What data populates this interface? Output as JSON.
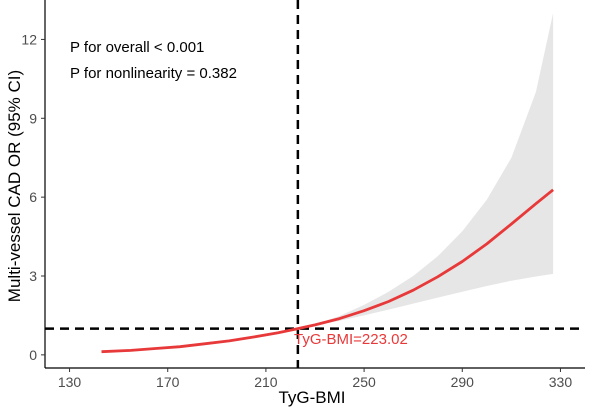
{
  "chart_data": {
    "type": "line",
    "title": "",
    "xlabel": "TyG-BMI",
    "ylabel": "Multi-vessel CAD OR (95% CI)",
    "xlim": [
      120,
      340
    ],
    "ylim": [
      -0.5,
      13.5
    ],
    "x_ticks": [
      130,
      170,
      210,
      250,
      290,
      330
    ],
    "y_ticks": [
      0,
      3,
      6,
      9,
      12
    ],
    "grid": false,
    "annotations": [
      "P for overall < 0.001",
      "P for nonlinearity = 0.382"
    ],
    "reference_lines": {
      "vertical_x": 223.02,
      "horizontal_y": 1,
      "style": "dashed",
      "label": "TyG-BMI=223.02"
    },
    "series": [
      {
        "color": "#e8393a",
        "x": [
          143,
          155,
          165,
          175,
          185,
          195,
          205,
          215,
          223.02,
          230,
          240,
          250,
          260,
          270,
          280,
          290,
          300,
          310,
          320,
          327
        ],
        "y": [
          0.12,
          0.17,
          0.24,
          0.31,
          0.42,
          0.53,
          0.68,
          0.84,
          1.0,
          1.14,
          1.38,
          1.68,
          2.03,
          2.46,
          2.97,
          3.55,
          4.22,
          4.98,
          5.75,
          6.28
        ]
      }
    ],
    "ci_band": {
      "color": "#e6e6e6",
      "x": [
        223.02,
        230,
        240,
        250,
        260,
        270,
        280,
        290,
        300,
        310,
        320,
        327
      ],
      "lower": [
        1.0,
        1.12,
        1.3,
        1.5,
        1.72,
        1.95,
        2.18,
        2.4,
        2.62,
        2.82,
        2.98,
        3.08
      ],
      "upper": [
        1.0,
        1.16,
        1.48,
        1.9,
        2.4,
        3.0,
        3.75,
        4.7,
        5.9,
        7.5,
        10.0,
        13.0
      ]
    }
  }
}
